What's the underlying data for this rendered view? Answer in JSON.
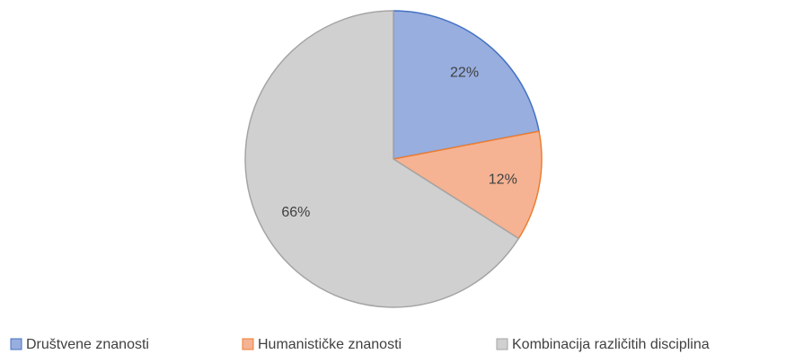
{
  "chart_data": {
    "type": "pie",
    "categories": [
      "Društvene znanosti",
      "Humanističke znanosti",
      "Kombinacija različitih disciplina"
    ],
    "values": [
      22,
      12,
      66
    ],
    "value_labels": [
      "22%",
      "12%",
      "66%"
    ],
    "colors": [
      "#98aedf",
      "#f5b393",
      "#d0d0d0"
    ],
    "edgecolors": [
      "#4472c4",
      "#ed7d31",
      "#a5a5a5"
    ],
    "legend": "bottom"
  }
}
